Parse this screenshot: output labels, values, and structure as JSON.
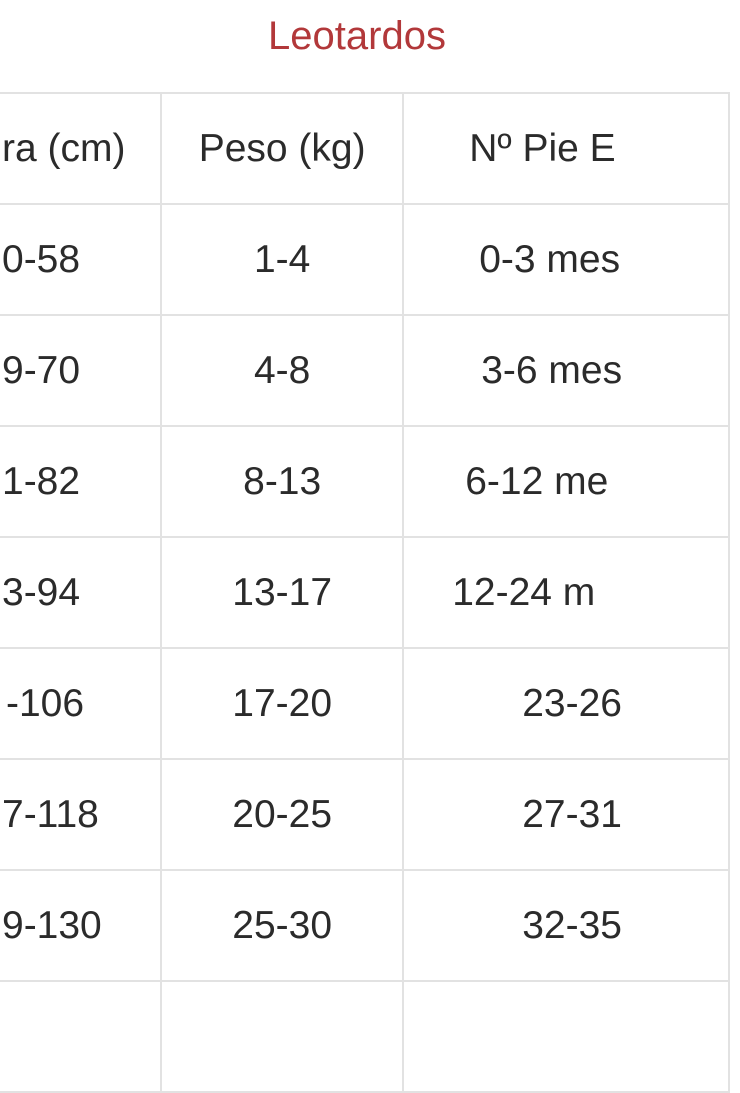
{
  "title": "Leotardos",
  "headers": [
    "ra (cm)",
    "Peso (kg)",
    "Nº Pie E"
  ],
  "rows": [
    [
      "0-58",
      "1-4",
      "0-3 mes"
    ],
    [
      "9-70",
      "4-8",
      "3-6 mes"
    ],
    [
      "1-82",
      "8-13",
      "6-12 me"
    ],
    [
      "3-94",
      "13-17",
      "12-24 m"
    ],
    [
      "-106",
      "17-20",
      "23-26"
    ],
    [
      "7-118",
      "20-25",
      "27-31"
    ],
    [
      "9-130",
      "25-30",
      "32-35"
    ],
    [
      "",
      "",
      ""
    ]
  ],
  "colors": {
    "title": "#b2383a",
    "text": "#2b2b2b",
    "grid": "#e2e2e2"
  }
}
